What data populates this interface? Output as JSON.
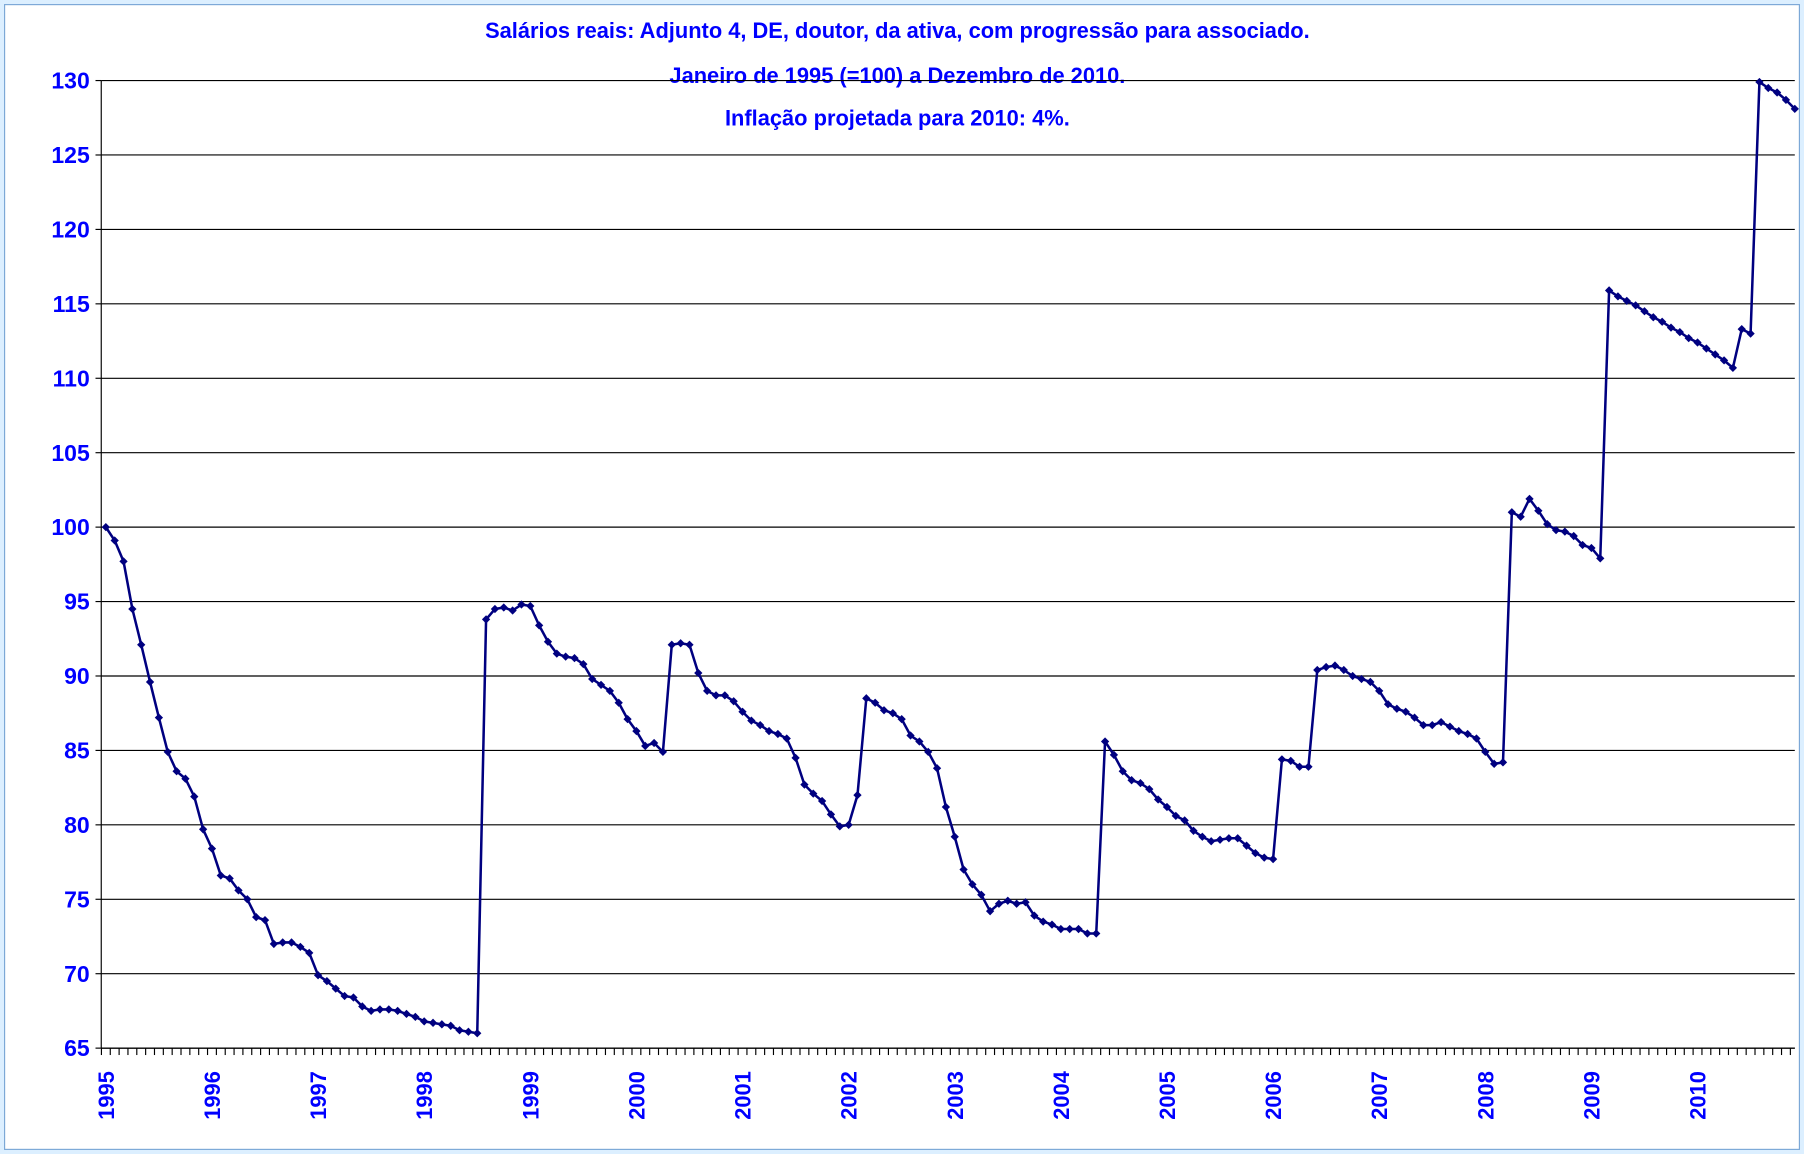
{
  "chart_data": {
    "type": "line",
    "title": "Salários reais: Adjunto 4, DE, doutor, da ativa, com progressão para associado.",
    "subtitle": [
      "Janeiro de 1995 (=100) a Dezembro de 2010.",
      "Inflação projetada para 2010: 4%."
    ],
    "categories": [
      "1995",
      null,
      null,
      null,
      null,
      null,
      null,
      null,
      null,
      null,
      null,
      null,
      "1996",
      null,
      null,
      null,
      null,
      null,
      null,
      null,
      null,
      null,
      null,
      null,
      "1997",
      null,
      null,
      null,
      null,
      null,
      null,
      null,
      null,
      null,
      null,
      null,
      "1998",
      null,
      null,
      null,
      null,
      null,
      null,
      null,
      null,
      null,
      null,
      null,
      "1999",
      null,
      null,
      null,
      null,
      null,
      null,
      null,
      null,
      null,
      null,
      null,
      "2000",
      null,
      null,
      null,
      null,
      null,
      null,
      null,
      null,
      null,
      null,
      null,
      "2001",
      null,
      null,
      null,
      null,
      null,
      null,
      null,
      null,
      null,
      null,
      null,
      "2002",
      null,
      null,
      null,
      null,
      null,
      null,
      null,
      null,
      null,
      null,
      null,
      "2003",
      null,
      null,
      null,
      null,
      null,
      null,
      null,
      null,
      null,
      null,
      null,
      "2004",
      null,
      null,
      null,
      null,
      null,
      null,
      null,
      null,
      null,
      null,
      null,
      "2005",
      null,
      null,
      null,
      null,
      null,
      null,
      null,
      null,
      null,
      null,
      null,
      "2006",
      null,
      null,
      null,
      null,
      null,
      null,
      null,
      null,
      null,
      null,
      null,
      "2007",
      null,
      null,
      null,
      null,
      null,
      null,
      null,
      null,
      null,
      null,
      null,
      "2008",
      null,
      null,
      null,
      null,
      null,
      null,
      null,
      null,
      null,
      null,
      null,
      "2009",
      null,
      null,
      null,
      null,
      null,
      null,
      null,
      null,
      null,
      null,
      null,
      "2010",
      null,
      null,
      null,
      null,
      null,
      null,
      null,
      null,
      null,
      null,
      null
    ],
    "values": [
      100,
      99.1,
      97.7,
      94.5,
      92.1,
      89.6,
      87.2,
      84.9,
      83.6,
      83.1,
      81.9,
      79.7,
      78.4,
      76.6,
      76.4,
      75.6,
      75.0,
      73.8,
      73.6,
      72.0,
      72.1,
      72.1,
      71.8,
      71.4,
      69.9,
      69.5,
      69.0,
      68.5,
      68.4,
      67.8,
      67.5,
      67.6,
      67.6,
      67.5,
      67.3,
      67.1,
      66.8,
      66.7,
      66.6,
      66.5,
      66.2,
      66.1,
      66.0,
      93.8,
      94.5,
      94.6,
      94.4,
      94.8,
      94.7,
      93.4,
      92.3,
      91.5,
      91.3,
      91.2,
      90.8,
      89.8,
      89.4,
      89.0,
      88.2,
      87.1,
      86.3,
      85.3,
      85.5,
      84.9,
      92.1,
      92.2,
      92.1,
      90.2,
      89.0,
      88.7,
      88.7,
      88.3,
      87.6,
      87.0,
      86.7,
      86.3,
      86.1,
      85.8,
      84.5,
      82.7,
      82.1,
      81.6,
      80.7,
      79.9,
      80.0,
      82.0,
      88.5,
      88.2,
      87.7,
      87.5,
      87.1,
      86.0,
      85.6,
      84.9,
      83.8,
      81.2,
      79.2,
      77.0,
      76.0,
      75.3,
      74.2,
      74.7,
      74.9,
      74.7,
      74.8,
      73.9,
      73.5,
      73.3,
      73.0,
      73.0,
      73.0,
      72.7,
      72.7,
      85.6,
      84.7,
      83.6,
      83.0,
      82.8,
      82.4,
      81.7,
      81.2,
      80.6,
      80.3,
      79.6,
      79.2,
      78.9,
      79.0,
      79.1,
      79.1,
      78.6,
      78.1,
      77.8,
      77.7,
      84.4,
      84.3,
      83.9,
      83.9,
      90.4,
      90.6,
      90.7,
      90.4,
      90.0,
      89.8,
      89.6,
      89.0,
      88.1,
      87.8,
      87.6,
      87.2,
      86.7,
      86.7,
      86.9,
      86.6,
      86.3,
      86.1,
      85.8,
      84.9,
      84.1,
      84.2,
      101.0,
      100.7,
      101.9,
      101.1,
      100.2,
      99.8,
      99.7,
      99.4,
      98.8,
      98.6,
      97.9,
      115.9,
      115.5,
      115.2,
      114.9,
      114.5,
      114.1,
      113.8,
      113.4,
      113.1,
      112.7,
      112.4,
      112.0,
      111.6,
      111.2,
      110.7,
      113.3,
      113.0,
      129.9,
      129.5,
      129.2,
      128.7,
      128.1
    ],
    "color": "#000080",
    "ylim": [
      65,
      130
    ],
    "yticks": [
      65,
      70,
      75,
      80,
      85,
      90,
      95,
      100,
      105,
      110,
      115,
      120,
      125,
      130
    ],
    "grid": true
  }
}
